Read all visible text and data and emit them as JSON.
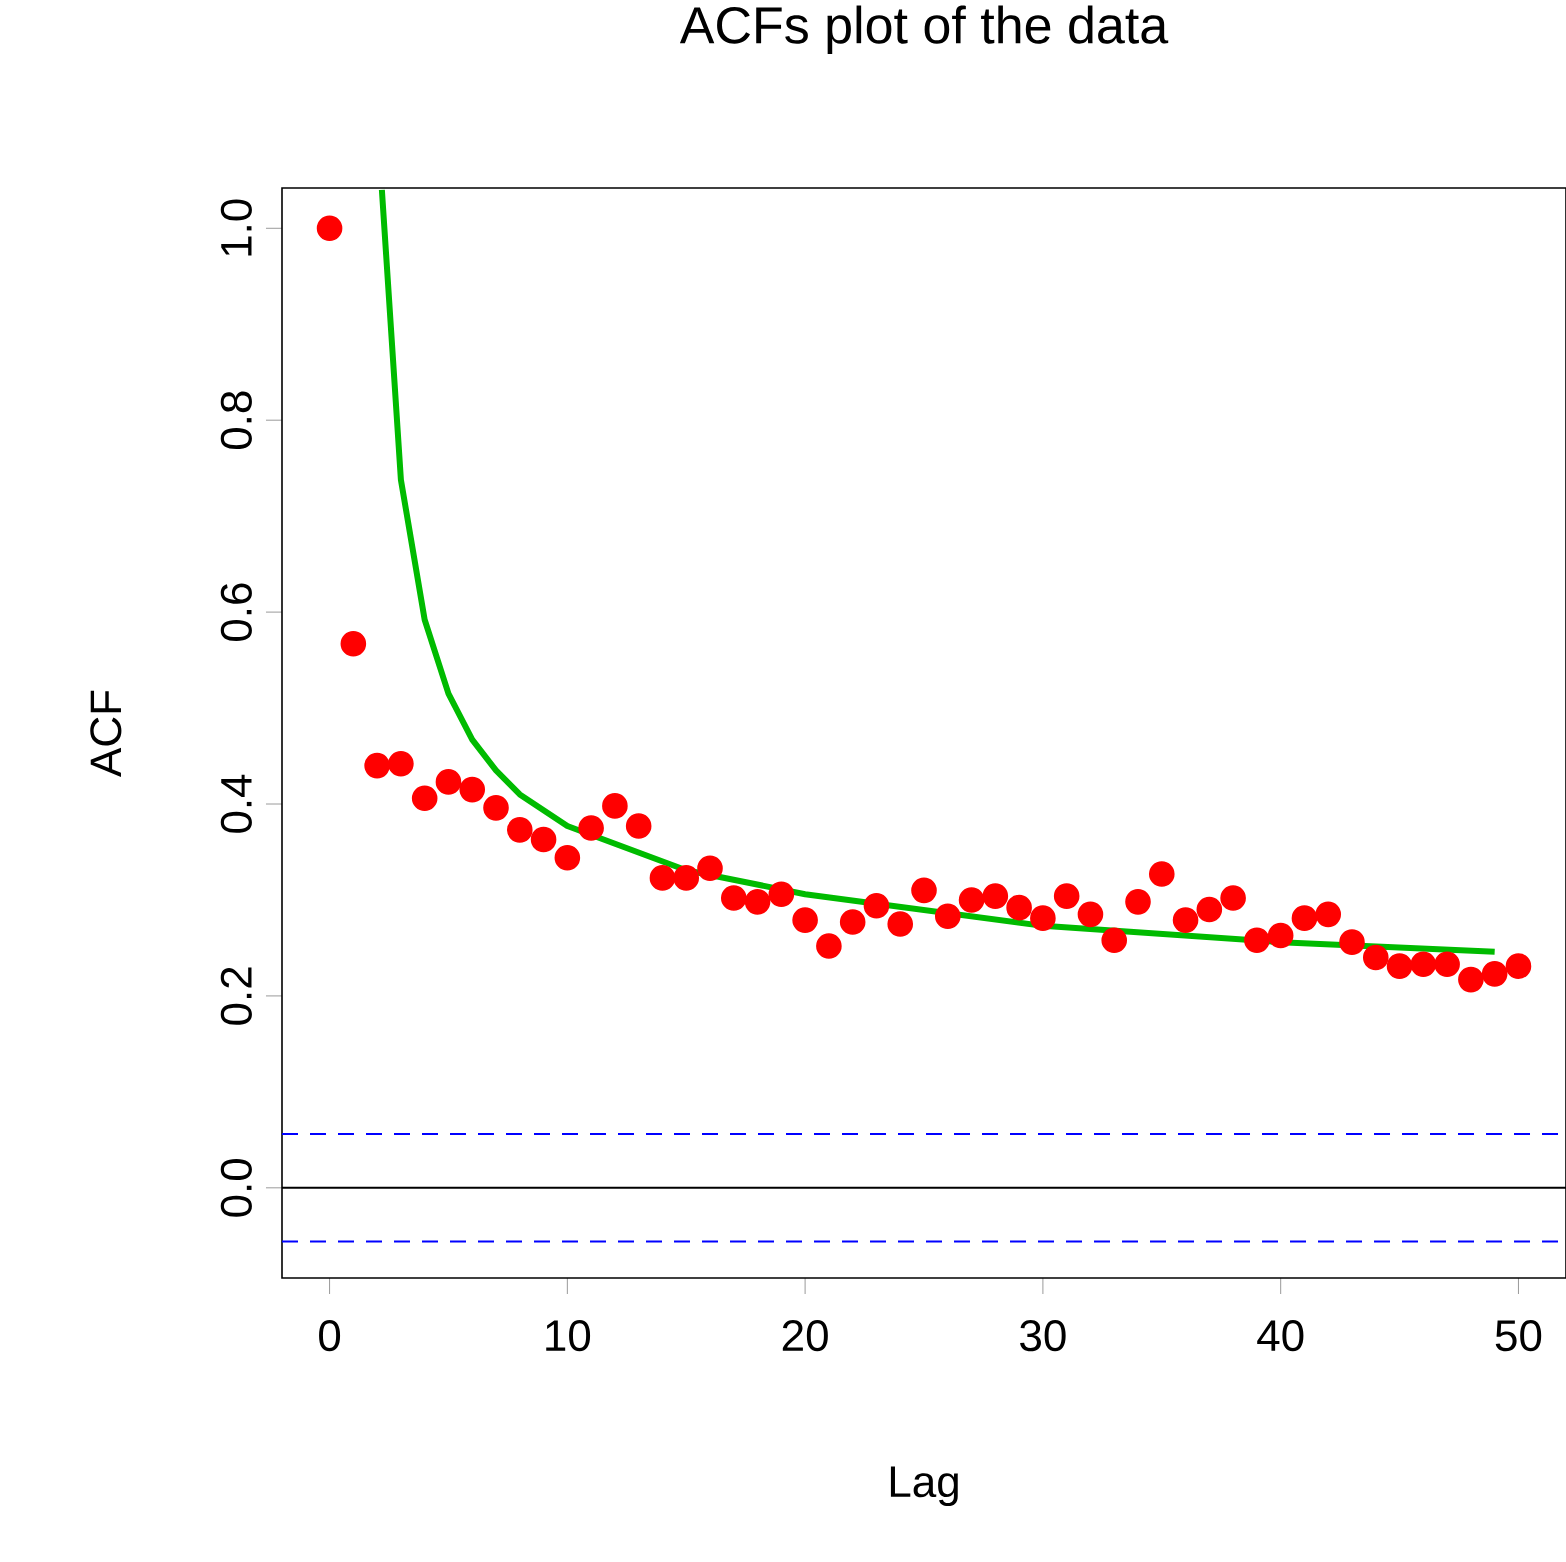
{
  "chart_data": {
    "type": "scatter",
    "title": "ACFs plot of the data",
    "xlabel": "Lag",
    "ylabel": "ACF",
    "x": [
      0,
      1,
      2,
      3,
      4,
      5,
      6,
      7,
      8,
      9,
      10,
      11,
      12,
      13,
      14,
      15,
      16,
      17,
      18,
      19,
      20,
      21,
      22,
      23,
      24,
      25,
      26,
      27,
      28,
      29,
      30,
      31,
      32,
      33,
      34,
      35,
      36,
      37,
      38,
      39,
      40,
      41,
      42,
      43,
      44,
      45,
      46,
      47,
      48,
      49,
      50
    ],
    "series": [
      {
        "color": "#ff0000",
        "marker": "circle",
        "values": [
          1.0,
          0.567,
          0.44,
          0.442,
          0.406,
          0.423,
          0.415,
          0.396,
          0.373,
          0.363,
          0.344,
          0.375,
          0.398,
          0.377,
          0.323,
          0.323,
          0.333,
          0.302,
          0.298,
          0.306,
          0.279,
          0.252,
          0.277,
          0.294,
          0.275,
          0.31,
          0.283,
          0.3,
          0.304,
          0.292,
          0.281,
          0.304,
          0.285,
          0.258,
          0.298,
          0.327,
          0.279,
          0.29,
          0.302,
          0.258,
          0.263,
          0.281,
          0.285,
          0.256,
          0.24,
          0.231,
          0.233,
          0.233,
          0.217,
          0.223,
          0.231
        ]
      },
      {
        "type": "line",
        "color": "#00bb00",
        "marker": "none",
        "x": [
          2.2,
          3,
          4,
          5,
          6,
          7,
          8,
          10,
          15,
          20,
          30,
          40,
          49
        ],
        "values": [
          1.04,
          0.738,
          0.592,
          0.515,
          0.467,
          0.435,
          0.41,
          0.377,
          0.331,
          0.306,
          0.273,
          0.256,
          0.246
        ]
      }
    ],
    "xlim": [
      -2,
      52
    ],
    "ylim": [
      -0.094,
      1.042
    ],
    "xticks": [
      0,
      10,
      20,
      30,
      40,
      50
    ],
    "yticks": [
      {
        "value": 0,
        "label": "0.0"
      },
      0.2,
      0.4,
      0.6,
      0.8,
      {
        "value": 1,
        "label": "1.0"
      }
    ],
    "ref_lines": [
      {
        "axis": "y",
        "value": 0,
        "color": "#000000",
        "line_style": "solid"
      },
      {
        "axis": "y",
        "value": 0.056,
        "color": "#0000ff",
        "line_style": "dashed"
      },
      {
        "axis": "y",
        "value": -0.056,
        "color": "#0000ff",
        "line_style": "dashed"
      }
    ],
    "grid": false
  }
}
